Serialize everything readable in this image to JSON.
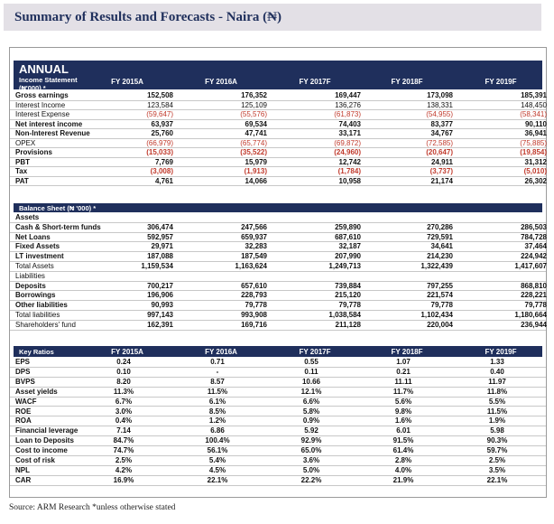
{
  "title": "Summary of Results and Forecasts - Naira (₦)",
  "source": "Source: ARM Research *unless otherwise stated",
  "annual_label": "ANNUAL",
  "years": [
    "FY 2015A",
    "FY 2016A",
    "FY 2017F",
    "FY 2018F",
    "FY 2019F"
  ],
  "income": {
    "header": "Income Statement (₦'000) *",
    "rows": [
      {
        "label": "Gross earnings",
        "bold": true,
        "values": [
          "152,508",
          "176,352",
          "169,447",
          "173,098",
          "185,391"
        ]
      },
      {
        "label": "Interest Income",
        "bold": false,
        "values": [
          "123,584",
          "125,109",
          "136,276",
          "138,331",
          "148,450"
        ]
      },
      {
        "label": "Interest Expense",
        "bold": false,
        "neg": true,
        "values": [
          "(59,647)",
          "(55,576)",
          "(61,873)",
          "(54,955)",
          "(58,341)"
        ]
      },
      {
        "label": "Net interest income",
        "bold": true,
        "values": [
          "63,937",
          "69,534",
          "74,403",
          "83,377",
          "90,110"
        ]
      },
      {
        "label": "Non-Interest Revenue",
        "bold": true,
        "values": [
          "25,760",
          "47,741",
          "33,171",
          "34,767",
          "36,941"
        ]
      },
      {
        "label": "OPEX",
        "bold": false,
        "neg": true,
        "values": [
          "(66,979)",
          "(65,774)",
          "(69,872)",
          "(72,585)",
          "(75,885)"
        ]
      },
      {
        "label": "Provisions",
        "bold": true,
        "neg": true,
        "values": [
          "(15,033)",
          "(35,522)",
          "(24,960)",
          "(20,647)",
          "(19,854)"
        ]
      },
      {
        "label": "PBT",
        "bold": true,
        "values": [
          "7,769",
          "15,979",
          "12,742",
          "24,911",
          "31,312"
        ]
      },
      {
        "label": "Tax",
        "bold": true,
        "neg": true,
        "values": [
          "(3,008)",
          "(1,913)",
          "(1,784)",
          "(3,737)",
          "(5,010)"
        ]
      },
      {
        "label": "PAT",
        "bold": true,
        "values": [
          "4,761",
          "14,066",
          "10,958",
          "21,174",
          "26,302"
        ]
      }
    ]
  },
  "balance": {
    "header": "Balance Sheet (₦ '000) *",
    "rows": [
      {
        "label": "Assets",
        "bold": true,
        "values": [
          "",
          "",
          "",
          "",
          ""
        ]
      },
      {
        "label": "Cash & Short-term funds",
        "bold": true,
        "values": [
          "306,474",
          "247,566",
          "259,890",
          "270,286",
          "286,503"
        ]
      },
      {
        "label": "Net Loans",
        "bold": true,
        "values": [
          "592,957",
          "659,937",
          "687,610",
          "729,591",
          "784,728"
        ]
      },
      {
        "label": "Fixed Assets",
        "bold": true,
        "values": [
          "29,971",
          "32,283",
          "32,187",
          "34,641",
          "37,464"
        ]
      },
      {
        "label": "LT investment",
        "bold": true,
        "values": [
          "187,088",
          "187,549",
          "207,990",
          "214,230",
          "224,942"
        ]
      },
      {
        "label": "Total Assets",
        "bold": false,
        "valbold": true,
        "values": [
          "1,159,534",
          "1,163,624",
          "1,249,713",
          "1,322,439",
          "1,417,607"
        ]
      },
      {
        "label": "Liabilities",
        "bold": false,
        "values": [
          "",
          "",
          "",
          "",
          ""
        ]
      },
      {
        "label": "Deposits",
        "bold": true,
        "values": [
          "700,217",
          "657,610",
          "739,884",
          "797,255",
          "868,810"
        ]
      },
      {
        "label": "Borrowings",
        "bold": true,
        "values": [
          "196,906",
          "228,793",
          "215,120",
          "221,574",
          "228,221"
        ]
      },
      {
        "label": "Other liabilities",
        "bold": true,
        "values": [
          "90,993",
          "79,778",
          "79,778",
          "79,778",
          "79,778"
        ]
      },
      {
        "label": "Total liabilities",
        "bold": false,
        "valbold": true,
        "values": [
          "997,143",
          "993,908",
          "1,038,584",
          "1,102,434",
          "1,180,664"
        ]
      },
      {
        "label": "Shareholders' fund",
        "bold": false,
        "valbold": true,
        "values": [
          "162,391",
          "169,716",
          "211,128",
          "220,004",
          "236,944"
        ]
      }
    ]
  },
  "ratios": {
    "header": "Key Ratios",
    "rows": [
      {
        "label": "EPS",
        "bold": true,
        "values": [
          "0.24",
          "0.71",
          "0.55",
          "1.07",
          "1.33"
        ]
      },
      {
        "label": "DPS",
        "bold": true,
        "values": [
          "0.10",
          "-",
          "0.11",
          "0.21",
          "0.40"
        ]
      },
      {
        "label": "BVPS",
        "bold": true,
        "values": [
          "8.20",
          "8.57",
          "10.66",
          "11.11",
          "11.97"
        ]
      },
      {
        "label": "Asset yields",
        "bold": true,
        "values": [
          "11.3%",
          "11.5%",
          "12.1%",
          "11.7%",
          "11.8%"
        ]
      },
      {
        "label": "WACF",
        "bold": true,
        "values": [
          "6.7%",
          "6.1%",
          "6.6%",
          "5.6%",
          "5.5%"
        ]
      },
      {
        "label": "ROE",
        "bold": true,
        "values": [
          "3.0%",
          "8.5%",
          "5.8%",
          "9.8%",
          "11.5%"
        ]
      },
      {
        "label": "ROA",
        "bold": true,
        "values": [
          "0.4%",
          "1.2%",
          "0.9%",
          "1.6%",
          "1.9%"
        ]
      },
      {
        "label": "Financial leverage",
        "bold": true,
        "values": [
          "7.14",
          "6.86",
          "5.92",
          "6.01",
          "5.98"
        ]
      },
      {
        "label": "Loan to Deposits",
        "bold": true,
        "values": [
          "84.7%",
          "100.4%",
          "92.9%",
          "91.5%",
          "90.3%"
        ]
      },
      {
        "label": "Cost to income",
        "bold": true,
        "values": [
          "74.7%",
          "56.1%",
          "65.0%",
          "61.4%",
          "59.7%"
        ]
      },
      {
        "label": "Cost of risk",
        "bold": true,
        "values": [
          "2.5%",
          "5.4%",
          "3.6%",
          "2.8%",
          "2.5%"
        ]
      },
      {
        "label": "NPL",
        "bold": true,
        "values": [
          "4.2%",
          "4.5%",
          "5.0%",
          "4.0%",
          "3.5%"
        ]
      },
      {
        "label": "CAR",
        "bold": true,
        "values": [
          "16.9%",
          "22.1%",
          "22.2%",
          "21.9%",
          "22.1%"
        ]
      }
    ]
  }
}
